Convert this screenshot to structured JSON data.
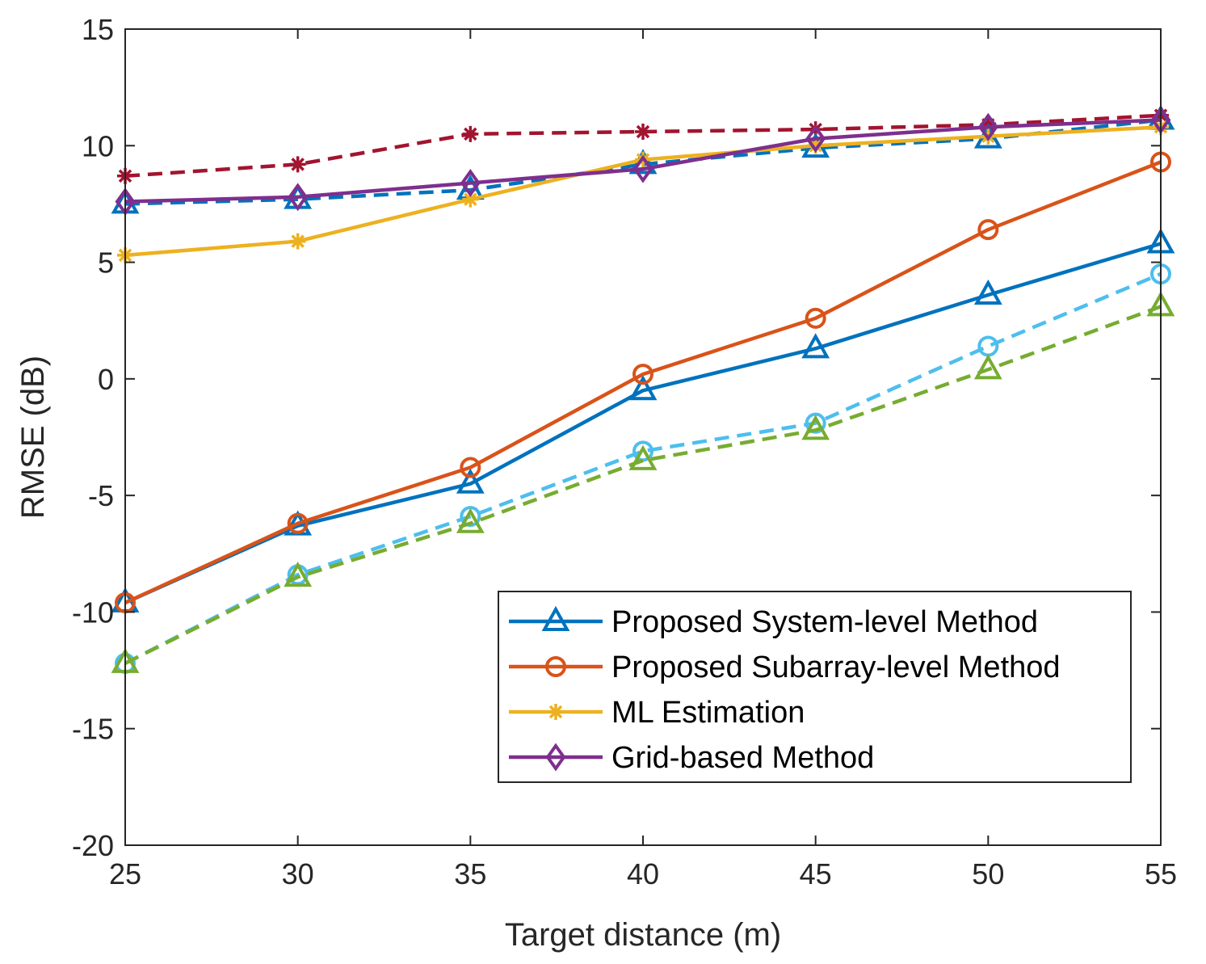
{
  "chart_data": {
    "type": "line",
    "title": "",
    "xlabel": "Target distance (m)",
    "ylabel": "RMSE (dB)",
    "xlim": [
      25,
      55
    ],
    "ylim": [
      -20,
      15
    ],
    "xticks": [
      25,
      30,
      35,
      40,
      45,
      50,
      55
    ],
    "yticks": [
      -20,
      -15,
      -10,
      -5,
      0,
      5,
      10,
      15
    ],
    "x": [
      25,
      30,
      35,
      40,
      45,
      50,
      55
    ],
    "legend_position": "bottom-right",
    "grid": false,
    "series": [
      {
        "name": "Proposed System-level Method",
        "color": "#0072BD",
        "style": "solid",
        "marker": "triangle",
        "values": [
          -9.6,
          -6.3,
          -4.5,
          -0.5,
          1.3,
          3.6,
          5.8
        ],
        "in_legend": true
      },
      {
        "name": "Proposed Subarray-level Method",
        "color": "#D95319",
        "style": "solid",
        "marker": "circle",
        "values": [
          -9.6,
          -6.2,
          -3.8,
          0.2,
          2.6,
          6.4,
          9.3
        ],
        "in_legend": true
      },
      {
        "name": "ML Estimation",
        "color": "#EDB120",
        "style": "solid",
        "marker": "asterisk",
        "values": [
          5.3,
          5.9,
          7.7,
          9.4,
          10.0,
          10.4,
          10.8
        ],
        "in_legend": true
      },
      {
        "name": "Grid-based Method",
        "color": "#7E2F8E",
        "style": "solid",
        "marker": "diamond",
        "values": [
          7.6,
          7.8,
          8.4,
          9.0,
          10.3,
          10.8,
          11.1
        ],
        "in_legend": true
      },
      {
        "name": "dashed-dark-red-asterisk",
        "color": "#A2142F",
        "style": "dashed",
        "marker": "asterisk",
        "values": [
          8.7,
          9.2,
          10.5,
          10.6,
          10.7,
          10.9,
          11.3
        ],
        "in_legend": false
      },
      {
        "name": "dashed-blue-triangle",
        "color": "#0072BD",
        "style": "dashed",
        "marker": "triangle",
        "values": [
          7.5,
          7.7,
          8.1,
          9.2,
          9.9,
          10.3,
          11.1
        ],
        "in_legend": false
      },
      {
        "name": "dashed-light-blue-circle",
        "color": "#4DBEEE",
        "style": "dashed",
        "marker": "circle",
        "values": [
          -12.2,
          -8.4,
          -5.9,
          -3.1,
          -1.9,
          1.4,
          4.5
        ],
        "in_legend": false
      },
      {
        "name": "dashed-green-triangle",
        "color": "#77AC30",
        "style": "dashed",
        "marker": "triangle",
        "values": [
          -12.2,
          -8.5,
          -6.2,
          -3.5,
          -2.2,
          0.4,
          3.1
        ],
        "in_legend": false
      }
    ]
  }
}
